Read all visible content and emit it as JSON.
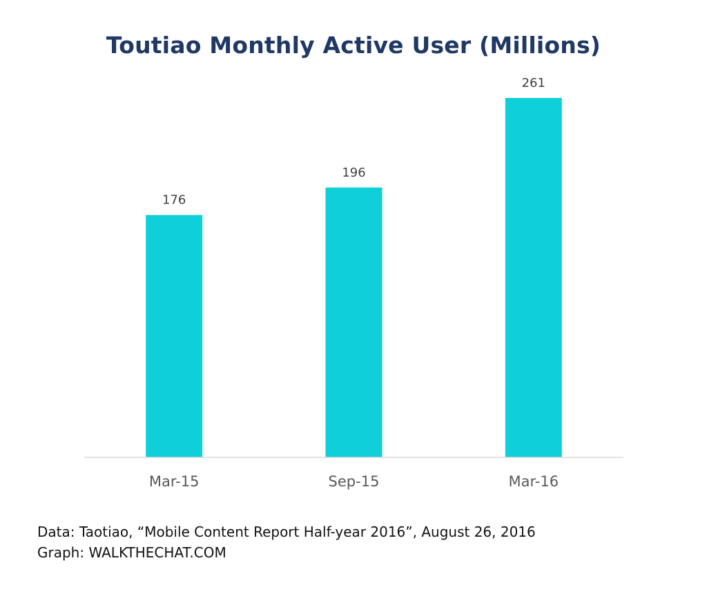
{
  "chart_data": {
    "type": "bar",
    "title": "Toutiao Monthly Active User (Millions)",
    "categories": [
      "Mar-15",
      "Sep-15",
      "Mar-16"
    ],
    "values": [
      176,
      196,
      261
    ],
    "data_labels": [
      "176",
      "196",
      "261"
    ],
    "xlabel": "",
    "ylabel": "",
    "ylim": [
      0,
      270
    ],
    "grid": false,
    "legend": "none",
    "bar_color": "#0fcfd8",
    "axis_color": "#d9d9d9",
    "label_color": "#404040",
    "title_color": "#1f3864"
  },
  "footer": {
    "source": "Data: Taotiao, “Mobile Content Report Half-year 2016”, August 26, 2016",
    "credit": "Graph: WALKTHECHAT.COM"
  }
}
